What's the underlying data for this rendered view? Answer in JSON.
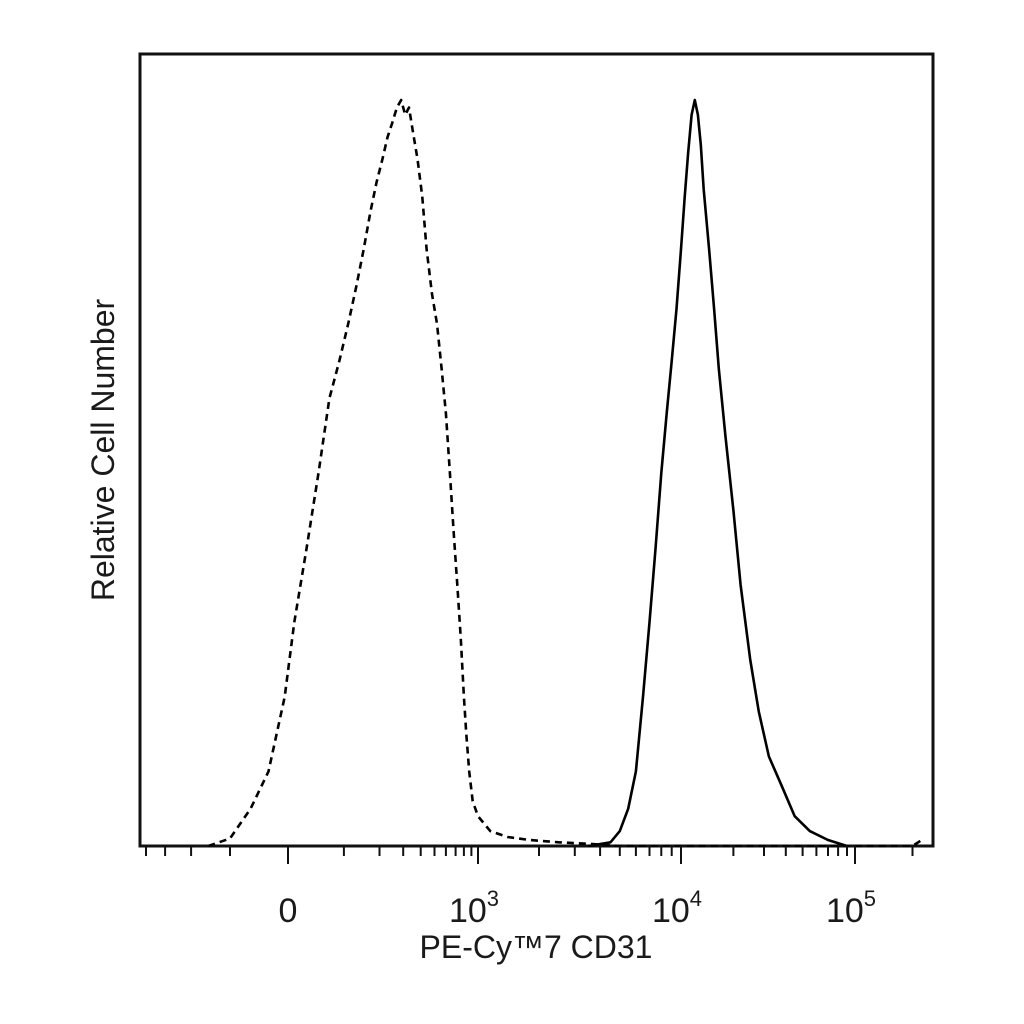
{
  "chart_data": {
    "type": "line",
    "title": "",
    "xlabel": "PE-Cy™7 CD31",
    "ylabel": "Relative Cell Number",
    "x_scale": "biexponential",
    "xlim": [
      -400,
      250000
    ],
    "ylim": [
      0,
      1.0
    ],
    "x_tick_labels": [
      {
        "value": 0,
        "base": "0",
        "exp": ""
      },
      {
        "value": 1000,
        "base": "10",
        "exp": "3"
      },
      {
        "value": 10000,
        "base": "10",
        "exp": "4"
      },
      {
        "value": 100000,
        "base": "10",
        "exp": "5"
      }
    ],
    "grid": false,
    "legend": "none",
    "series": [
      {
        "style": "dashed",
        "color": "#000000",
        "points": [
          [
            -150,
            0.0
          ],
          [
            -100,
            0.01
          ],
          [
            -60,
            0.05
          ],
          [
            -30,
            0.1
          ],
          [
            -5,
            0.2
          ],
          [
            10,
            0.3
          ],
          [
            30,
            0.4
          ],
          [
            50,
            0.5
          ],
          [
            70,
            0.6
          ],
          [
            90,
            0.65
          ],
          [
            110,
            0.7
          ],
          [
            130,
            0.75
          ],
          [
            150,
            0.8
          ],
          [
            170,
            0.85
          ],
          [
            190,
            0.89
          ],
          [
            210,
            0.92
          ],
          [
            230,
            0.95
          ],
          [
            250,
            0.97
          ],
          [
            270,
            0.99
          ],
          [
            290,
            1.0
          ],
          [
            310,
            0.98
          ],
          [
            330,
            0.99
          ],
          [
            350,
            0.96
          ],
          [
            380,
            0.92
          ],
          [
            410,
            0.87
          ],
          [
            440,
            0.8
          ],
          [
            480,
            0.74
          ],
          [
            520,
            0.7
          ],
          [
            560,
            0.64
          ],
          [
            600,
            0.58
          ],
          [
            640,
            0.5
          ],
          [
            680,
            0.42
          ],
          [
            720,
            0.35
          ],
          [
            760,
            0.28
          ],
          [
            800,
            0.2
          ],
          [
            830,
            0.15
          ],
          [
            870,
            0.1
          ],
          [
            920,
            0.06
          ],
          [
            1000,
            0.04
          ],
          [
            1150,
            0.02
          ],
          [
            1400,
            0.012
          ],
          [
            1800,
            0.008
          ],
          [
            2500,
            0.005
          ],
          [
            3500,
            0.003
          ],
          [
            5000,
            0.0
          ],
          [
            200000,
            0.0
          ],
          [
            230000,
            0.01
          ]
        ]
      },
      {
        "style": "solid",
        "color": "#000000",
        "points": [
          [
            3500,
            0.0
          ],
          [
            4500,
            0.005
          ],
          [
            5000,
            0.02
          ],
          [
            5500,
            0.05
          ],
          [
            6000,
            0.1
          ],
          [
            6500,
            0.2
          ],
          [
            7000,
            0.3
          ],
          [
            7500,
            0.4
          ],
          [
            8000,
            0.5
          ],
          [
            8500,
            0.58
          ],
          [
            9000,
            0.65
          ],
          [
            9500,
            0.72
          ],
          [
            10000,
            0.8
          ],
          [
            10500,
            0.87
          ],
          [
            11000,
            0.93
          ],
          [
            11500,
            0.98
          ],
          [
            12000,
            1.0
          ],
          [
            12500,
            0.98
          ],
          [
            13000,
            0.94
          ],
          [
            13500,
            0.88
          ],
          [
            14500,
            0.8
          ],
          [
            15500,
            0.72
          ],
          [
            16500,
            0.64
          ],
          [
            18000,
            0.55
          ],
          [
            20000,
            0.45
          ],
          [
            22000,
            0.35
          ],
          [
            25000,
            0.25
          ],
          [
            28000,
            0.18
          ],
          [
            32000,
            0.12
          ],
          [
            38000,
            0.08
          ],
          [
            45000,
            0.04
          ],
          [
            55000,
            0.02
          ],
          [
            70000,
            0.008
          ],
          [
            90000,
            0.0
          ]
        ]
      }
    ]
  }
}
